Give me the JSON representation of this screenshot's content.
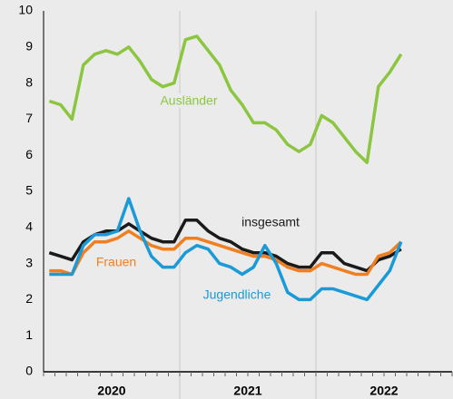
{
  "chart_data": {
    "type": "line",
    "categories": [
      null,
      null,
      null,
      null,
      null,
      null,
      null,
      null,
      null,
      null,
      null,
      null,
      null,
      null,
      null,
      null,
      null,
      null,
      null,
      null,
      null,
      null,
      null,
      null,
      null,
      null,
      null,
      null,
      null,
      null,
      null,
      null,
      null,
      null,
      null,
      null
    ],
    "year_labels": [
      "2020",
      "2021",
      "2022"
    ],
    "ylim": [
      0,
      10
    ],
    "yticks": [
      0,
      1,
      2,
      3,
      4,
      5,
      6,
      7,
      8,
      9,
      10
    ],
    "series": [
      {
        "name": "Ausländer",
        "color": "#8cc641",
        "values": [
          7.5,
          7.4,
          7.0,
          8.5,
          8.8,
          8.9,
          8.8,
          9.0,
          8.6,
          8.1,
          7.9,
          8.0,
          9.2,
          9.3,
          8.9,
          8.5,
          7.8,
          7.4,
          6.9,
          6.9,
          6.7,
          6.3,
          6.1,
          6.3,
          7.1,
          6.9,
          6.5,
          6.1,
          5.8,
          7.9,
          8.3,
          8.8,
          null,
          null,
          null,
          null
        ]
      },
      {
        "name": "insgesamt",
        "color": "#1a1a1a",
        "values": [
          3.3,
          3.2,
          3.1,
          3.6,
          3.8,
          3.9,
          3.9,
          4.1,
          3.9,
          3.7,
          3.6,
          3.6,
          4.2,
          4.2,
          3.9,
          3.7,
          3.6,
          3.4,
          3.3,
          3.3,
          3.2,
          3.0,
          2.9,
          2.9,
          3.3,
          3.3,
          3.0,
          2.9,
          2.8,
          3.1,
          3.2,
          3.4,
          null,
          null,
          null,
          null
        ]
      },
      {
        "name": "Frauen",
        "color": "#f07f22",
        "values": [
          2.8,
          2.8,
          2.7,
          3.3,
          3.6,
          3.6,
          3.7,
          3.9,
          3.7,
          3.5,
          3.4,
          3.4,
          3.7,
          3.7,
          3.6,
          3.5,
          3.4,
          3.3,
          3.2,
          3.2,
          3.1,
          2.9,
          2.8,
          2.8,
          3.0,
          2.9,
          2.8,
          2.7,
          2.7,
          3.2,
          3.3,
          3.6,
          null,
          null,
          null,
          null
        ]
      },
      {
        "name": "Jugendliche",
        "color": "#1a9ad6",
        "values": [
          2.7,
          2.7,
          2.7,
          3.5,
          3.8,
          3.8,
          3.9,
          4.8,
          3.9,
          3.2,
          2.9,
          2.9,
          3.3,
          3.5,
          3.4,
          3.0,
          2.9,
          2.7,
          2.9,
          3.5,
          3.0,
          2.2,
          2.0,
          2.0,
          2.3,
          2.3,
          2.2,
          2.1,
          2.0,
          2.4,
          2.8,
          3.6,
          null,
          null,
          null,
          null
        ]
      }
    ]
  }
}
